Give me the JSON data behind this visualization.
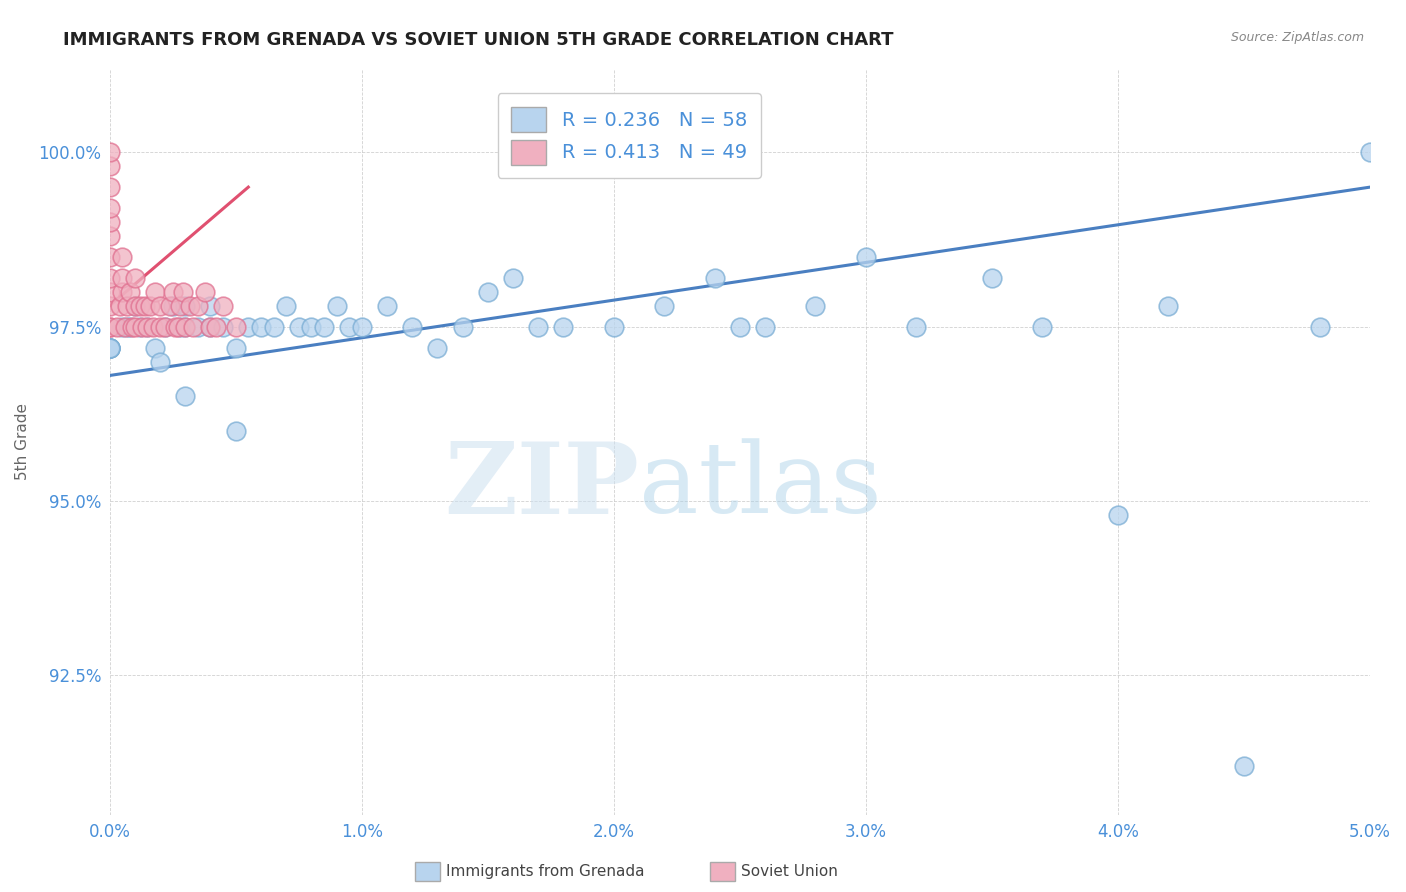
{
  "title": "IMMIGRANTS FROM GRENADA VS SOVIET UNION 5TH GRADE CORRELATION CHART",
  "source": "Source: ZipAtlas.com",
  "ylabel": "5th Grade",
  "series": [
    {
      "name": "Immigrants from Grenada",
      "R": 0.236,
      "N": 58,
      "color": "#b8d4ee",
      "edge_color": "#7aadd4",
      "line_color": "#4a7fc1",
      "trend_x0": 0.0,
      "trend_x1": 5.0,
      "trend_y0": 96.8,
      "trend_y1": 99.5,
      "points_x": [
        0.0,
        0.0,
        0.0,
        0.0,
        0.0,
        0.05,
        0.07,
        0.08,
        0.1,
        0.12,
        0.15,
        0.18,
        0.2,
        0.22,
        0.25,
        0.28,
        0.3,
        0.3,
        0.35,
        0.4,
        0.4,
        0.45,
        0.5,
        0.55,
        0.6,
        0.65,
        0.7,
        0.75,
        0.8,
        0.85,
        0.9,
        0.95,
        1.0,
        1.1,
        1.2,
        1.3,
        1.4,
        1.5,
        1.6,
        1.7,
        1.8,
        2.0,
        2.2,
        2.4,
        2.5,
        2.6,
        2.8,
        3.0,
        3.2,
        3.5,
        3.7,
        4.0,
        4.2,
        4.5,
        4.8,
        5.0,
        0.3,
        0.5
      ],
      "points_y": [
        97.2,
        97.2,
        97.2,
        97.2,
        97.2,
        97.5,
        97.5,
        97.5,
        97.8,
        97.5,
        97.5,
        97.2,
        97.0,
        97.5,
        97.8,
        97.5,
        97.5,
        97.8,
        97.5,
        97.8,
        97.5,
        97.5,
        97.2,
        97.5,
        97.5,
        97.5,
        97.8,
        97.5,
        97.5,
        97.5,
        97.8,
        97.5,
        97.5,
        97.8,
        97.5,
        97.2,
        97.5,
        98.0,
        98.2,
        97.5,
        97.5,
        97.5,
        97.8,
        98.2,
        97.5,
        97.5,
        97.8,
        98.5,
        97.5,
        98.2,
        97.5,
        94.8,
        97.8,
        91.2,
        97.5,
        100.0,
        96.5,
        96.0
      ]
    },
    {
      "name": "Soviet Union",
      "R": 0.413,
      "N": 49,
      "color": "#f0b0c0",
      "edge_color": "#e07090",
      "line_color": "#e05070",
      "trend_x0": 0.0,
      "trend_x1": 0.55,
      "trend_y0": 97.8,
      "trend_y1": 99.5,
      "points_x": [
        0.0,
        0.0,
        0.0,
        0.0,
        0.0,
        0.0,
        0.0,
        0.0,
        0.0,
        0.0,
        0.0,
        0.0,
        0.03,
        0.04,
        0.05,
        0.05,
        0.05,
        0.06,
        0.07,
        0.08,
        0.09,
        0.1,
        0.1,
        0.1,
        0.12,
        0.13,
        0.14,
        0.15,
        0.16,
        0.17,
        0.18,
        0.2,
        0.2,
        0.22,
        0.24,
        0.25,
        0.26,
        0.27,
        0.28,
        0.29,
        0.3,
        0.32,
        0.33,
        0.35,
        0.38,
        0.4,
        0.42,
        0.45,
        0.5
      ],
      "points_y": [
        97.5,
        97.5,
        97.8,
        98.0,
        98.2,
        98.5,
        98.8,
        99.0,
        99.2,
        99.5,
        99.8,
        100.0,
        97.5,
        97.8,
        98.0,
        98.2,
        98.5,
        97.5,
        97.8,
        98.0,
        97.5,
        97.5,
        97.8,
        98.2,
        97.8,
        97.5,
        97.8,
        97.5,
        97.8,
        97.5,
        98.0,
        97.5,
        97.8,
        97.5,
        97.8,
        98.0,
        97.5,
        97.5,
        97.8,
        98.0,
        97.5,
        97.8,
        97.5,
        97.8,
        98.0,
        97.5,
        97.5,
        97.8,
        97.5
      ]
    }
  ],
  "xlim": [
    0.0,
    5.0
  ],
  "ylim": [
    90.5,
    101.2
  ],
  "yticks": [
    92.5,
    95.0,
    97.5,
    100.0
  ],
  "ytick_labels": [
    "92.5%",
    "95.0%",
    "97.5%",
    "100.0%"
  ],
  "xtick_labels": [
    "0.0%",
    "1.0%",
    "2.0%",
    "3.0%",
    "4.0%",
    "5.0%"
  ],
  "xticks": [
    0.0,
    1.0,
    2.0,
    3.0,
    4.0,
    5.0
  ],
  "watermark_zip": "ZIP",
  "watermark_atlas": "atlas",
  "dot_size": 180
}
